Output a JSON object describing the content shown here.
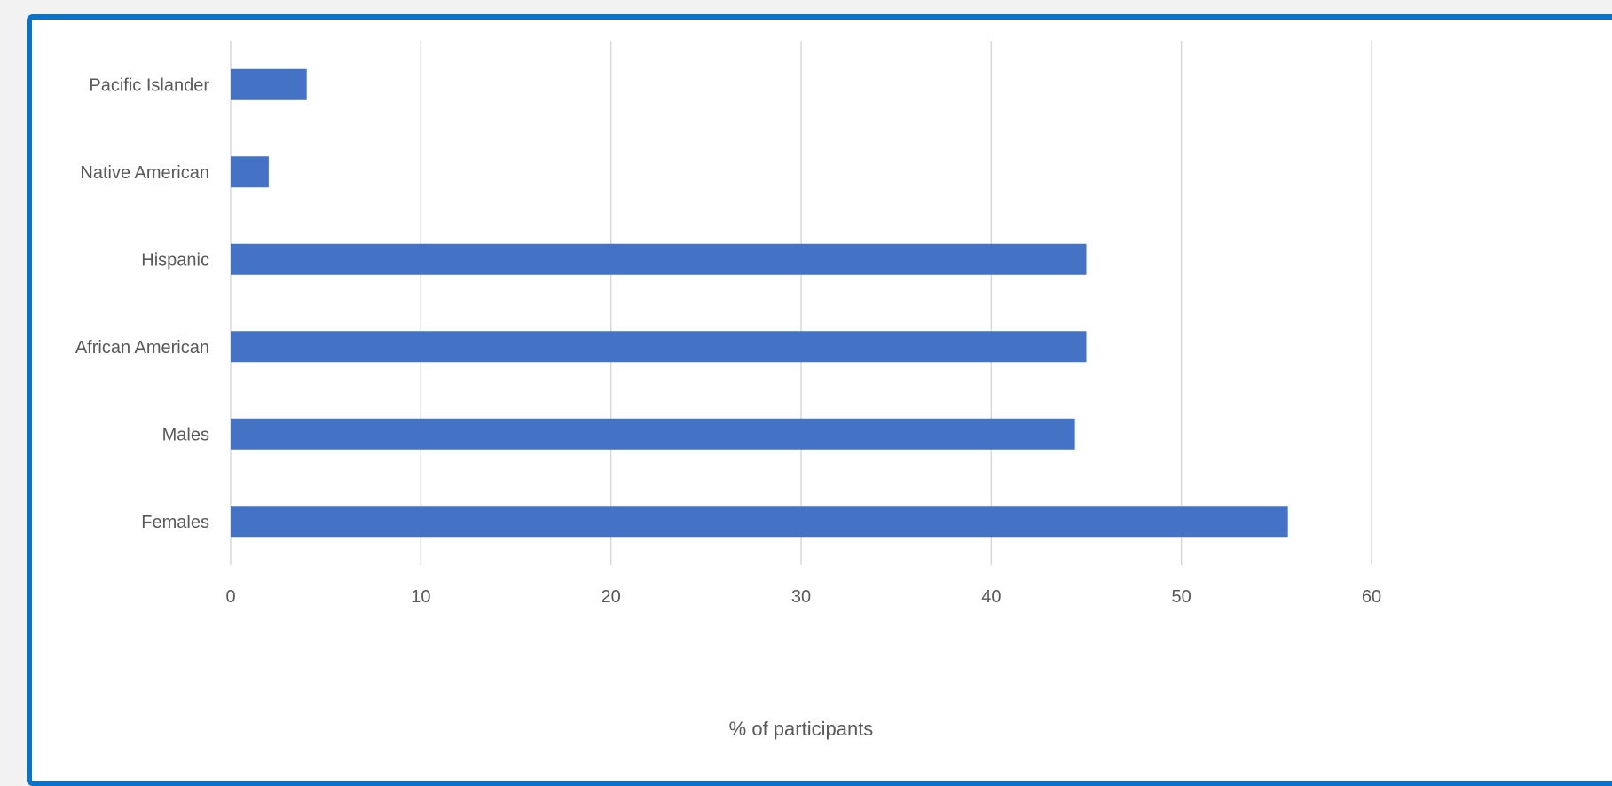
{
  "chart_data": {
    "type": "bar",
    "orientation": "horizontal",
    "categories": [
      "Pacific Islander",
      "Native American",
      "Hispanic",
      "African American",
      "Males",
      "Females"
    ],
    "values": [
      4,
      2,
      45,
      45,
      44.4,
      55.6
    ],
    "xlabel": "% of participants",
    "ylabel": "",
    "xlim": [
      0,
      60
    ],
    "xticks": [
      "0",
      "10",
      "20",
      "30",
      "40",
      "50",
      "60"
    ],
    "grid": "vertical",
    "legend": "none",
    "colors": {
      "bar": "#4472c4",
      "grid": "#d9d9d9",
      "text": "#595959",
      "frame": "#0a72c8"
    }
  }
}
